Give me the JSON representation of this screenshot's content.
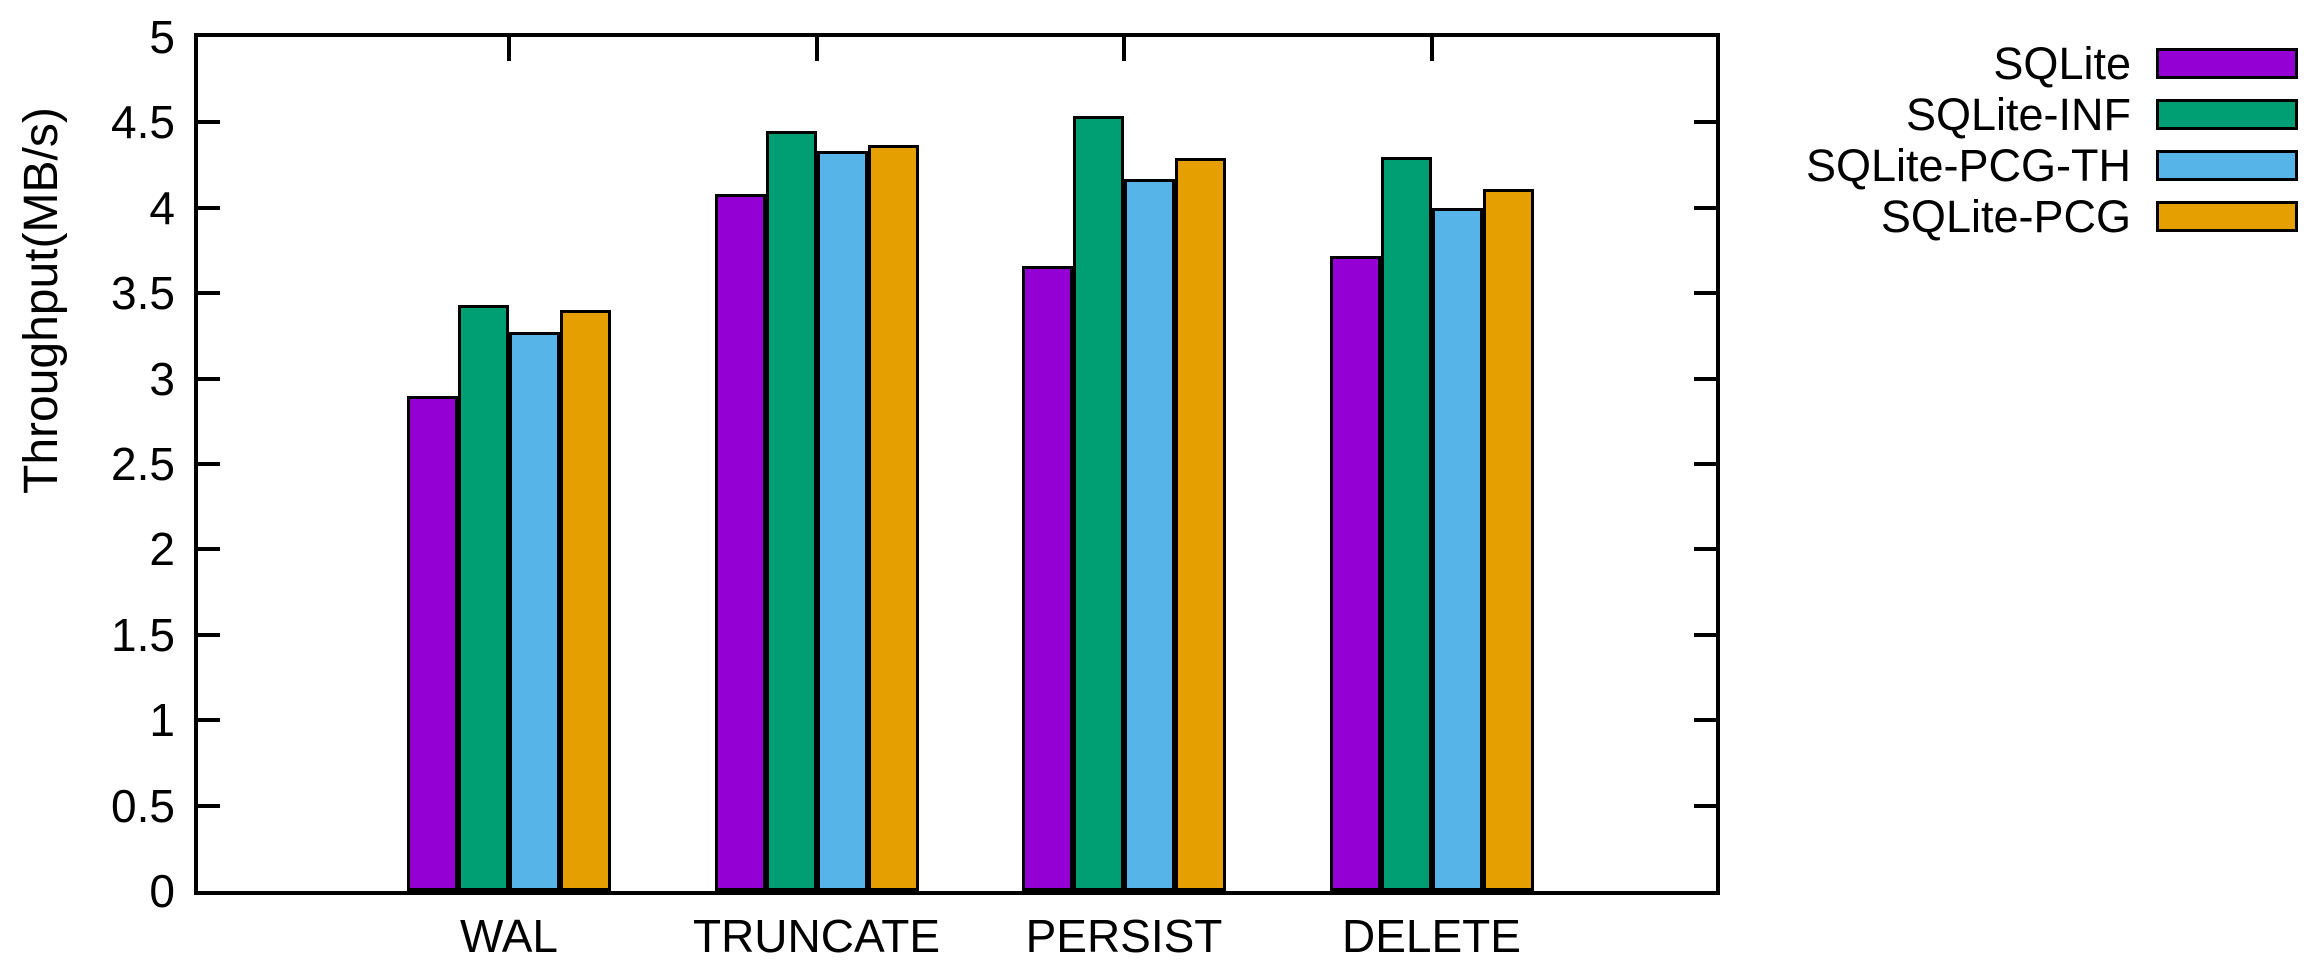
{
  "chart_data": {
    "type": "bar",
    "title": "",
    "xlabel": "",
    "ylabel": "Throughput(MB/s)",
    "ylim": [
      0,
      5
    ],
    "ytick_step": 0.5,
    "ytick_labels": [
      "0",
      "0.5",
      "1",
      "1.5",
      "2",
      "2.5",
      "3",
      "3.5",
      "4",
      "4.5",
      "5"
    ],
    "grid": false,
    "legend_position": "outside-top-right",
    "categories": [
      "WAL",
      "TRUNCATE",
      "PERSIST",
      "DELETE"
    ],
    "series": [
      {
        "name": "SQLite",
        "color": "#9400d3",
        "values": [
          2.9,
          4.08,
          3.66,
          3.72
        ]
      },
      {
        "name": "SQLite-INF",
        "color": "#009e73",
        "values": [
          3.43,
          4.45,
          4.54,
          4.3
        ]
      },
      {
        "name": "SQLite-PCG-TH",
        "color": "#56b4e9",
        "values": [
          3.27,
          4.33,
          4.17,
          4.0
        ]
      },
      {
        "name": "SQLite-PCG",
        "color": "#e69f00",
        "values": [
          3.4,
          4.37,
          4.29,
          4.11
        ]
      }
    ]
  }
}
